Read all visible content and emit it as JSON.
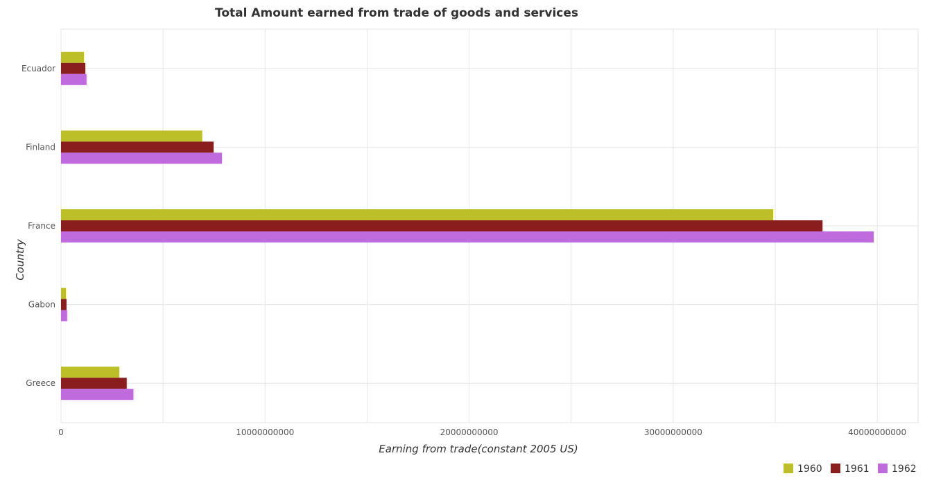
{
  "chart_data": {
    "type": "bar",
    "orientation": "horizontal",
    "title": "Total Amount earned from trade of goods and services",
    "xlabel": "Earning from trade(constant 2005 US)",
    "ylabel": "Country",
    "categories": [
      "Ecuador",
      "Finland",
      "France",
      "Gabon",
      "Greece"
    ],
    "series": [
      {
        "name": "1960",
        "color": "#bdbf29",
        "values": [
          1120000000.0,
          6920000000.0,
          34900000000.0,
          240000000.0,
          2860000000.0
        ]
      },
      {
        "name": "1961",
        "color": "#8a1d1d",
        "values": [
          1190000000.0,
          7480000000.0,
          37320000000.0,
          270000000.0,
          3220000000.0
        ]
      },
      {
        "name": "1962",
        "color": "#bf6bde",
        "values": [
          1250000000.0,
          7890000000.0,
          39830000000.0,
          300000000.0,
          3550000000.0
        ]
      }
    ],
    "xlim": [
      0,
      42000000000
    ],
    "xticks": [
      0,
      10000000000,
      20000000000,
      30000000000,
      40000000000
    ],
    "xtick_labels": [
      "0",
      "10000000000",
      "20000000000",
      "30000000000",
      "40000000000"
    ],
    "grid": true,
    "legend_position": "bottom-right"
  }
}
